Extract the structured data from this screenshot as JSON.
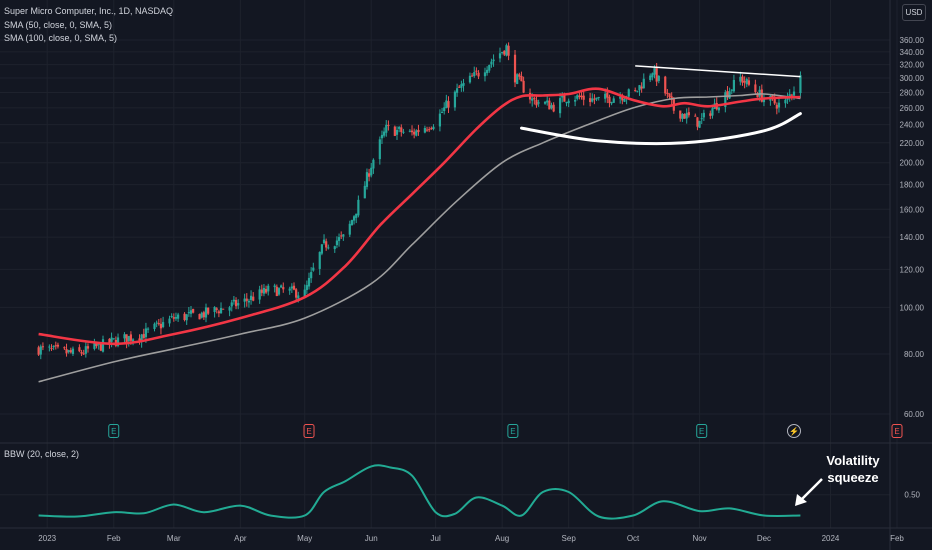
{
  "header": {
    "symbol_line": "Super Micro Computer, Inc., 1D, NASDAQ",
    "sma50_line": "SMA (50, close, 0, SMA, 5)",
    "sma100_line": "SMA (100, close, 0, SMA, 5)",
    "currency": "USD"
  },
  "indicator": {
    "label": "BBW (20, close, 2)"
  },
  "annotation": {
    "line1": "Volatility",
    "line2": "squeeze"
  },
  "colors": {
    "background": "#131722",
    "up": "#26a69a",
    "down": "#ef5350",
    "sma50": "#f23645",
    "sma100": "#9e9e9e",
    "bbw": "#22ab94",
    "grid": "#1e222d",
    "axis_text": "#b2b5be",
    "drawing": "#ffffff"
  },
  "chart_data": [
    {
      "type": "candlestick",
      "title": "Super Micro Computer, Inc., 1D, NASDAQ",
      "y_axis": {
        "range": [
          50,
          370
        ],
        "ticks": [
          "60.00",
          "80.00",
          "100.00",
          "120.00",
          "140.00",
          "160.00",
          "180.00",
          "200.00",
          "220.00",
          "240.00",
          "260.00",
          "280.00",
          "300.00",
          "320.00",
          "340.00",
          "360.00"
        ],
        "scale": "log"
      },
      "x_axis": {
        "ticks": [
          "2023",
          "Feb",
          "Mar",
          "Apr",
          "May",
          "Jun",
          "Jul",
          "Aug",
          "Sep",
          "Oct",
          "Nov",
          "Dec",
          "2024",
          "Feb"
        ]
      },
      "grid": true,
      "price_path": {
        "dates": [
          "2022-12-28",
          "2023-01-15",
          "2023-02-01",
          "2023-02-15",
          "2023-03-01",
          "2023-03-15",
          "2023-04-01",
          "2023-04-15",
          "2023-05-01",
          "2023-05-10",
          "2023-05-20",
          "2023-05-27",
          "2023-06-01",
          "2023-06-08",
          "2023-06-20",
          "2023-07-01",
          "2023-07-12",
          "2023-07-22",
          "2023-08-03",
          "2023-08-05",
          "2023-08-15",
          "2023-08-25",
          "2023-09-01",
          "2023-09-15",
          "2023-10-02",
          "2023-10-10",
          "2023-10-20",
          "2023-11-01",
          "2023-11-10",
          "2023-11-20",
          "2023-12-01",
          "2023-12-10",
          "2023-12-18"
        ],
        "close": [
          82,
          80,
          85,
          88,
          95,
          97,
          102,
          109,
          107,
          135,
          140,
          168,
          198,
          235,
          230,
          244,
          285,
          310,
          348,
          310,
          270,
          262,
          275,
          270,
          280,
          312,
          258,
          242,
          268,
          300,
          272,
          262,
          300
        ]
      },
      "series": [
        {
          "name": "SMA (50, close, 0, SMA, 5)",
          "x": [
            "2022-12-28",
            "2023-02-01",
            "2023-03-01",
            "2023-04-01",
            "2023-05-01",
            "2023-05-20",
            "2023-06-05",
            "2023-06-20",
            "2023-07-05",
            "2023-07-20",
            "2023-08-01",
            "2023-08-10",
            "2023-08-20",
            "2023-09-01",
            "2023-09-15",
            "2023-10-01",
            "2023-10-15",
            "2023-10-25",
            "2023-11-05",
            "2023-11-20",
            "2023-12-01",
            "2023-12-18"
          ],
          "y": [
            88,
            84,
            88,
            95,
            105,
            122,
            148,
            172,
            200,
            235,
            262,
            275,
            276,
            278,
            285,
            270,
            262,
            266,
            262,
            268,
            272,
            274
          ]
        },
        {
          "name": "SMA (100, close, 0, SMA, 5)",
          "x": [
            "2022-12-28",
            "2023-02-01",
            "2023-03-01",
            "2023-04-01",
            "2023-05-01",
            "2023-06-01",
            "2023-06-20",
            "2023-07-10",
            "2023-08-01",
            "2023-08-20",
            "2023-09-10",
            "2023-10-01",
            "2023-10-20",
            "2023-11-05",
            "2023-11-20",
            "2023-12-01",
            "2023-12-18"
          ],
          "y": [
            70,
            77,
            82,
            88,
            95,
            112,
            135,
            165,
            200,
            220,
            240,
            260,
            272,
            274,
            276,
            278,
            272
          ]
        }
      ],
      "trendlines": [
        {
          "x": [
            "2023-10-02",
            "2023-12-18"
          ],
          "y": [
            318,
            302
          ]
        }
      ],
      "curves": [
        {
          "x": [
            "2023-08-10",
            "2023-09-15",
            "2023-10-25",
            "2023-12-01",
            "2023-12-18"
          ],
          "y": [
            236,
            222,
            220,
            233,
            253
          ]
        }
      ],
      "event_markers": [
        {
          "x": "2023-02-01",
          "label": "E"
        },
        {
          "x": "2023-05-03",
          "label": "E"
        },
        {
          "x": "2023-08-06",
          "label": "E"
        },
        {
          "x": "2023-11-02",
          "label": "E"
        },
        {
          "x": "2023-12-15",
          "label": "⚡"
        },
        {
          "x": "2024-02-01",
          "label": "E"
        }
      ]
    },
    {
      "type": "line",
      "title": "BBW (20, close, 2)",
      "y_axis": {
        "ticks": [
          "0.50"
        ],
        "range": [
          0,
          1.1
        ]
      },
      "series": [
        {
          "name": "BBW (20, close, 2)",
          "x": [
            "2022-12-28",
            "2023-01-15",
            "2023-02-01",
            "2023-02-15",
            "2023-03-01",
            "2023-03-15",
            "2023-04-01",
            "2023-04-15",
            "2023-05-01",
            "2023-05-10",
            "2023-05-20",
            "2023-06-01",
            "2023-06-10",
            "2023-06-20",
            "2023-07-01",
            "2023-07-10",
            "2023-07-20",
            "2023-08-01",
            "2023-08-10",
            "2023-08-20",
            "2023-09-01",
            "2023-09-15",
            "2023-10-01",
            "2023-10-15",
            "2023-11-01",
            "2023-11-15",
            "2023-12-01",
            "2023-12-18"
          ],
          "y": [
            0.12,
            0.1,
            0.18,
            0.16,
            0.32,
            0.18,
            0.3,
            0.12,
            0.12,
            0.55,
            0.75,
            1.02,
            1.0,
            0.85,
            0.18,
            0.15,
            0.45,
            0.3,
            0.12,
            0.55,
            0.55,
            0.1,
            0.12,
            0.38,
            0.2,
            0.25,
            0.12,
            0.12
          ]
        }
      ]
    }
  ]
}
